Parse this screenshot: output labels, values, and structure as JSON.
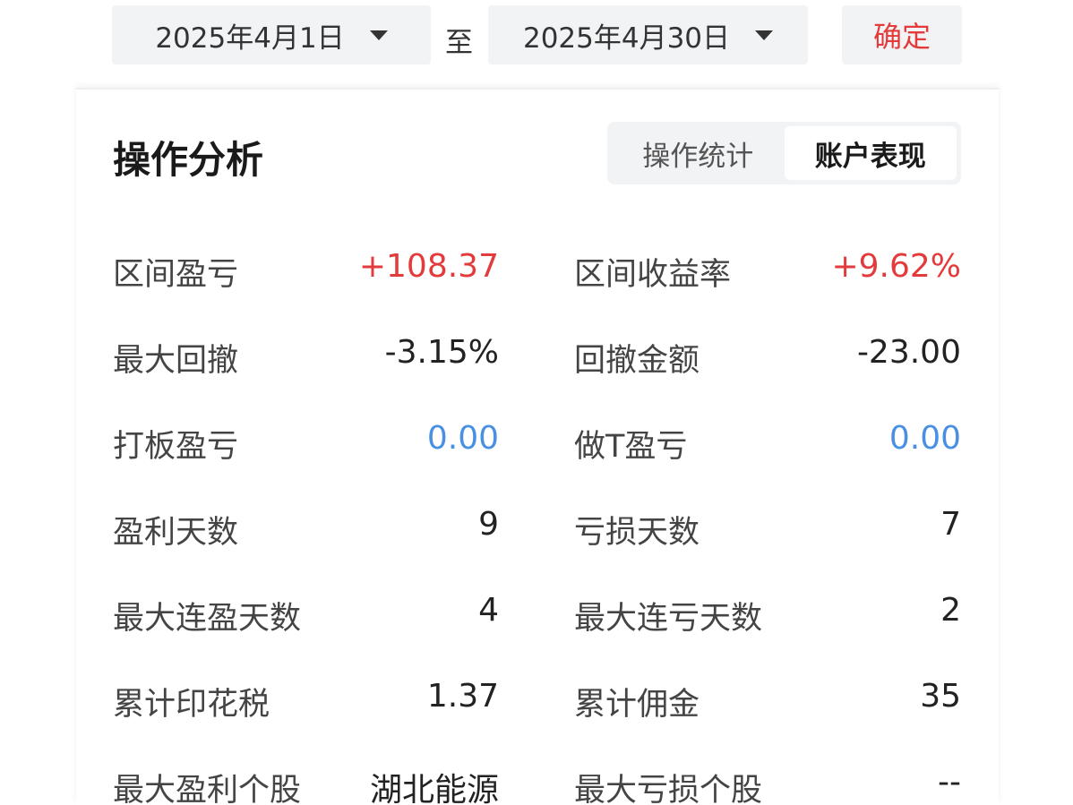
{
  "date_range": {
    "start": "2025年4月1日",
    "separator": "至",
    "end": "2025年4月30日",
    "confirm_label": "确定"
  },
  "section": {
    "title": "操作分析",
    "tabs": [
      {
        "label": "操作统计",
        "active": false
      },
      {
        "label": "账户表现",
        "active": true
      }
    ]
  },
  "metrics": {
    "left": [
      {
        "label": "区间盈亏",
        "value": "+108.37",
        "tone": "red"
      },
      {
        "label": "最大回撤",
        "value": "-3.15%",
        "tone": "neutral"
      },
      {
        "label": "打板盈亏",
        "value": "0.00",
        "tone": "blue"
      },
      {
        "label": "盈利天数",
        "value": "9",
        "tone": "neutral"
      },
      {
        "label": "最大连盈天数",
        "value": "4",
        "tone": "neutral"
      },
      {
        "label": "累计印花税",
        "value": "1.37",
        "tone": "neutral"
      },
      {
        "label": "最大盈利个股",
        "value": "湖北能源",
        "tone": "neutral"
      }
    ],
    "right": [
      {
        "label": "区间收益率",
        "value": "+9.62%",
        "tone": "red"
      },
      {
        "label": "回撤金额",
        "value": "-23.00",
        "tone": "neutral"
      },
      {
        "label": "做T盈亏",
        "value": "0.00",
        "tone": "blue"
      },
      {
        "label": "亏损天数",
        "value": "7",
        "tone": "neutral"
      },
      {
        "label": "最大连亏天数",
        "value": "2",
        "tone": "neutral"
      },
      {
        "label": "累计佣金",
        "value": "35",
        "tone": "neutral"
      },
      {
        "label": "最大亏损个股",
        "value": "--",
        "tone": "neutral"
      }
    ]
  },
  "colors": {
    "positive": "#e33b3b",
    "zero": "#4a90e2",
    "neutral": "#222222"
  }
}
